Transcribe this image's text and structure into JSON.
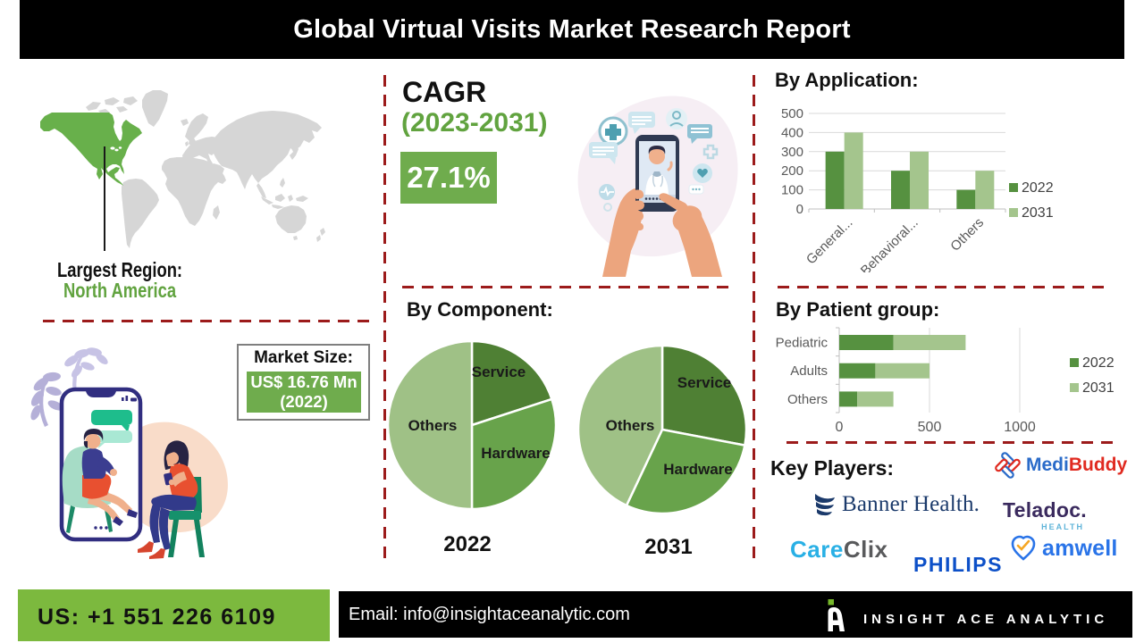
{
  "header": {
    "title": "Global Virtual Visits Market Research Report"
  },
  "colors": {
    "accent-green": "#61a33f",
    "box-green": "#6fac4d",
    "footer-green": "#7cb93e",
    "dash-red": "#9c1b1b",
    "series-2022": "#569140",
    "series-2031": "#a4c58d",
    "pie-dark": "#4f8034",
    "pie-mid": "#68a34b",
    "pie-light": "#9fc186",
    "map-gray": "#d5d5d5",
    "map-green": "#68b04b",
    "logo-green": "#76b82a"
  },
  "map": {
    "largest_region_label": "Largest Region:",
    "largest_region_value": "North America"
  },
  "cagr": {
    "label": "CAGR",
    "period": "(2023-2031)",
    "value": "27.1%"
  },
  "market_size": {
    "label": "Market Size:",
    "value_line1": "US$ 16.76 Mn",
    "value_line2": "(2022)"
  },
  "chart_data": [
    {
      "id": "by_application",
      "type": "bar",
      "title": "By Application:",
      "categories": [
        "General...",
        "Behavioral...",
        "Others"
      ],
      "series": [
        {
          "name": "2022",
          "values": [
            300,
            200,
            100
          ],
          "color": "#569140"
        },
        {
          "name": "2031",
          "values": [
            400,
            300,
            200
          ],
          "color": "#a4c58d"
        }
      ],
      "ylim": [
        0,
        500
      ],
      "yticks": [
        0,
        100,
        200,
        300,
        400,
        500
      ],
      "grid": true,
      "legend_position": "right"
    },
    {
      "id": "by_component_2022",
      "type": "pie",
      "title": "By Component:",
      "caption": "2022",
      "slices": [
        {
          "name": "Service",
          "value": 20,
          "color": "#4f8034"
        },
        {
          "name": "Hardware",
          "value": 30,
          "color": "#68a34b"
        },
        {
          "name": "Others",
          "value": 50,
          "color": "#9fc186"
        }
      ]
    },
    {
      "id": "by_component_2031",
      "type": "pie",
      "title": "By Component:",
      "caption": "2031",
      "slices": [
        {
          "name": "Service",
          "value": 28,
          "color": "#4f8034"
        },
        {
          "name": "Hardware",
          "value": 29,
          "color": "#68a34b"
        },
        {
          "name": "Others",
          "value": 43,
          "color": "#9fc186"
        }
      ]
    },
    {
      "id": "by_patient_group",
      "type": "bar-horizontal-stacked",
      "title": "By Patient group:",
      "categories": [
        "Pediatric",
        "Adults",
        "Others"
      ],
      "series": [
        {
          "name": "2022",
          "values": [
            300,
            200,
            100
          ],
          "color": "#569140"
        },
        {
          "name": "2031",
          "values": [
            400,
            300,
            200
          ],
          "color": "#a4c58d"
        }
      ],
      "xlim": [
        0,
        1200
      ],
      "xticks": [
        0,
        500,
        1000
      ],
      "grid": true,
      "legend_position": "right"
    }
  ],
  "sections": {
    "by_component_title": "By Component:",
    "by_application_title": "By Application:",
    "by_patient_group_title": "By Patient group:"
  },
  "key_players": {
    "label": "Key Players:",
    "medibuddy": {
      "part1": "Medi",
      "part2": "Buddy",
      "color1": "#2a6bc9",
      "color2": "#e02a20"
    },
    "banner": {
      "name": "Banner Health.",
      "color": "#1b3a6b"
    },
    "teladoc": {
      "name": "Teladoc.",
      "sub": "HEALTH",
      "color": "#3a2a5e",
      "sub_color": "#5fb4d9"
    },
    "careclix": {
      "part1": "Care",
      "part2": "Clix",
      "color1": "#29b0e5",
      "color2": "#595a5c"
    },
    "philips": {
      "name": "PHILIPS",
      "color": "#0d50c8"
    },
    "amwell": {
      "name": "amwell",
      "color": "#2a74e8"
    }
  },
  "footer": {
    "phone": "US: +1 551 226 6109",
    "email": "Email: info@insightaceanalytic.com",
    "brand": "INSIGHT ACE ANALYTIC"
  }
}
